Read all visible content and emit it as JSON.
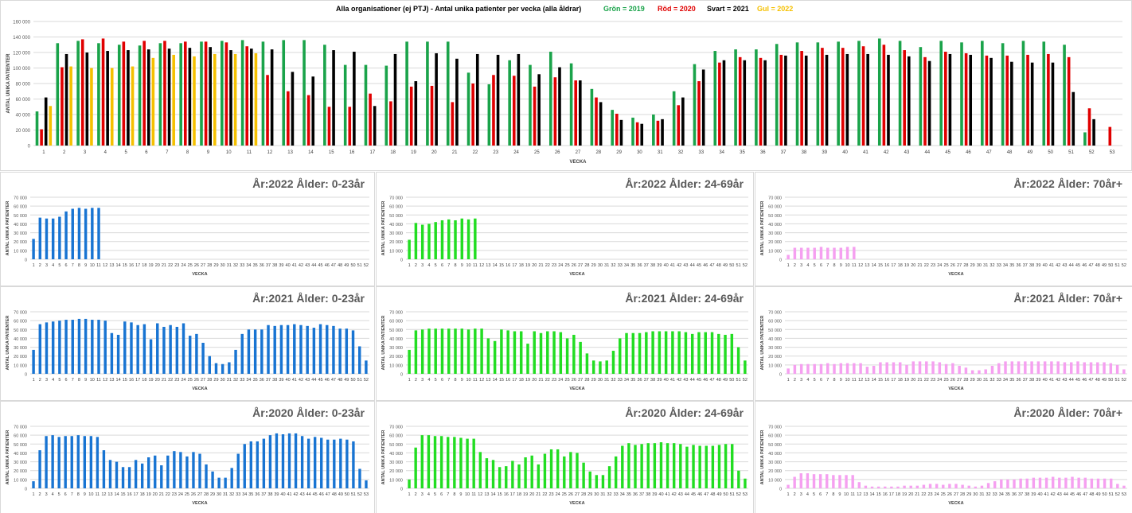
{
  "chart_data": [
    {
      "type": "bar",
      "title_parts": [
        {
          "text": "Alla organisationer (ej PTJ)   -   Antal unika patienter per vecka (alla åldrar)",
          "color": "#000000"
        },
        {
          "text": "Grön = 2019",
          "color": "#1aa34a"
        },
        {
          "text": "Röd = 2020",
          "color": "#e00000"
        },
        {
          "text": "Svart = 2021",
          "color": "#000000"
        },
        {
          "text": "Gul = 2022",
          "color": "#f5c000"
        }
      ],
      "xlabel": "VECKA",
      "ylabel": "ANTAL UNIKA PATIENTER",
      "ylim": [
        0,
        160000
      ],
      "ytick_step": 20000,
      "categories": [
        "1",
        "2",
        "3",
        "4",
        "5",
        "6",
        "7",
        "8",
        "9",
        "10",
        "11",
        "12",
        "13",
        "14",
        "15",
        "16",
        "17",
        "18",
        "19",
        "20",
        "21",
        "22",
        "23",
        "24",
        "25",
        "26",
        "27",
        "28",
        "29",
        "30",
        "31",
        "32",
        "33",
        "34",
        "35",
        "36",
        "37",
        "38",
        "39",
        "40",
        "41",
        "42",
        "43",
        "44",
        "45",
        "46",
        "47",
        "48",
        "49",
        "50",
        "51",
        "52",
        "53"
      ],
      "grid": true,
      "series": [
        {
          "name": "Grön = 2019",
          "color": "#1aa34a",
          "values": [
            44000,
            132000,
            135000,
            132000,
            130000,
            129000,
            132000,
            132000,
            134000,
            135000,
            136000,
            134000,
            136000,
            136000,
            130000,
            104000,
            104000,
            103000,
            134000,
            134000,
            134000,
            94000,
            79000,
            110000,
            104000,
            121000,
            106000,
            73000,
            46000,
            36000,
            40000,
            70000,
            105000,
            122000,
            124000,
            124000,
            131000,
            133000,
            133000,
            134000,
            135000,
            138000,
            135000,
            127000,
            135000,
            133000,
            135000,
            132000,
            135000,
            134000,
            130000,
            17000,
            null
          ]
        },
        {
          "name": "Röd = 2020",
          "color": "#e00000",
          "values": [
            21000,
            101000,
            137000,
            138000,
            134000,
            135000,
            135000,
            134000,
            134000,
            133000,
            128000,
            91000,
            70000,
            65000,
            50000,
            50000,
            67000,
            57000,
            76000,
            77000,
            56000,
            80000,
            91000,
            90000,
            76000,
            88000,
            84000,
            62000,
            41000,
            30000,
            32000,
            52000,
            83000,
            107000,
            114000,
            113000,
            117000,
            122000,
            126000,
            126000,
            128000,
            130000,
            123000,
            114000,
            121000,
            119000,
            116000,
            116000,
            117000,
            118000,
            114000,
            48000,
            24000
          ]
        },
        {
          "name": "Svart = 2021",
          "color": "#000000",
          "values": [
            62000,
            118000,
            120000,
            122000,
            123000,
            124000,
            125000,
            126000,
            127000,
            123000,
            125000,
            124000,
            95000,
            89000,
            123000,
            121000,
            51000,
            118000,
            83000,
            119000,
            112000,
            118000,
            117000,
            118000,
            92000,
            101000,
            84000,
            56000,
            33000,
            28000,
            34000,
            62000,
            98000,
            110000,
            110000,
            110000,
            116000,
            116000,
            117000,
            118000,
            118000,
            117000,
            115000,
            109000,
            118000,
            117000,
            113000,
            108000,
            107000,
            107000,
            69000,
            34000,
            null
          ]
        },
        {
          "name": "Gul = 2022",
          "color": "#f5c000",
          "values": [
            51000,
            102000,
            100000,
            100000,
            102000,
            113000,
            117000,
            115000,
            118000,
            118000,
            119000,
            null,
            null,
            null,
            null,
            null,
            null,
            null,
            null,
            null,
            null,
            null,
            null,
            null,
            null,
            null,
            null,
            null,
            null,
            null,
            null,
            null,
            null,
            null,
            null,
            null,
            null,
            null,
            null,
            null,
            null,
            null,
            null,
            null,
            null,
            null,
            null,
            null,
            null,
            null,
            null,
            null,
            null
          ]
        }
      ]
    },
    {
      "type": "bar",
      "title": "År:2022   Ålder: 0-23år",
      "xlabel": "VECKA",
      "ylabel": "ANTAL UNIKA PATIENTER",
      "ylim": [
        0,
        70000
      ],
      "ytick_step": 10000,
      "x_count": 52,
      "color": "#1874d2",
      "values": [
        23000,
        47000,
        46000,
        46000,
        48000,
        54000,
        57000,
        58000,
        57000,
        58000,
        58000
      ]
    },
    {
      "type": "bar",
      "title": "År:2022   Ålder: 24-69år",
      "xlabel": "VECKA",
      "ylabel": "ANTAL UNIKA PATIENTER",
      "ylim": [
        0,
        70000
      ],
      "ytick_step": 10000,
      "x_count": 52,
      "color": "#22dd22",
      "values": [
        22000,
        41000,
        39000,
        40000,
        42000,
        44000,
        45000,
        44000,
        46000,
        45000,
        46000
      ]
    },
    {
      "type": "bar",
      "title": "År:2022   Ålder: 70år+",
      "xlabel": "VECKA",
      "ylabel": "ANTAL UNIKA PATIENTER",
      "ylim": [
        0,
        70000
      ],
      "ytick_step": 10000,
      "x_count": 52,
      "color": "#f5a0f0",
      "values": [
        5000,
        13000,
        13000,
        13000,
        13000,
        14000,
        13000,
        13000,
        13000,
        14000,
        14000
      ]
    },
    {
      "type": "bar",
      "title": "År:2021   Ålder: 0-23år",
      "xlabel": "VECKA",
      "ylabel": "ANTAL UNIKA PATIENTER",
      "ylim": [
        0,
        70000
      ],
      "ytick_step": 10000,
      "x_count": 52,
      "color": "#1874d2",
      "values": [
        27000,
        56000,
        58000,
        59000,
        60000,
        61000,
        61000,
        62000,
        62000,
        61000,
        61000,
        60000,
        46000,
        44000,
        59000,
        58000,
        55000,
        56000,
        39000,
        57000,
        53000,
        55000,
        53000,
        57000,
        43000,
        45000,
        35000,
        20000,
        12000,
        11000,
        13000,
        27000,
        45000,
        50000,
        50000,
        50000,
        55000,
        54000,
        55000,
        55000,
        56000,
        55000,
        54000,
        52000,
        56000,
        55000,
        54000,
        51000,
        51000,
        49000,
        31000,
        15000
      ]
    },
    {
      "type": "bar",
      "title": "År:2021   Ålder: 24-69år",
      "xlabel": "VECKA",
      "ylabel": "ANTAL UNIKA PATIENTER",
      "ylim": [
        0,
        70000
      ],
      "ytick_step": 10000,
      "x_count": 52,
      "color": "#22dd22",
      "values": [
        27000,
        49000,
        50000,
        51000,
        51000,
        51000,
        51000,
        51000,
        51000,
        50000,
        51000,
        51000,
        40000,
        37000,
        50000,
        49000,
        48000,
        48000,
        34000,
        48000,
        46000,
        48000,
        48000,
        47000,
        40000,
        44000,
        36000,
        23000,
        15000,
        14000,
        15000,
        26000,
        40000,
        46000,
        46000,
        46000,
        47000,
        48000,
        48000,
        48000,
        48000,
        48000,
        47000,
        45000,
        47000,
        47000,
        47000,
        45000,
        44000,
        45000,
        30000,
        15000
      ]
    },
    {
      "type": "bar",
      "title": "År:2021   Ålder: 70år+",
      "xlabel": "VECKA",
      "ylabel": "ANTAL UNIKA PATIENTER",
      "ylim": [
        0,
        70000
      ],
      "ytick_step": 10000,
      "x_count": 52,
      "color": "#f5a0f0",
      "values": [
        6000,
        10000,
        11000,
        11000,
        11000,
        11000,
        12000,
        11000,
        12000,
        12000,
        12000,
        12000,
        8000,
        9000,
        13000,
        13000,
        13000,
        13000,
        10000,
        14000,
        14000,
        14000,
        14000,
        13000,
        11000,
        12000,
        9000,
        7000,
        4000,
        4000,
        5000,
        9000,
        12000,
        14000,
        14000,
        14000,
        14000,
        14000,
        14000,
        14000,
        14000,
        14000,
        13000,
        13000,
        14000,
        13000,
        13000,
        13000,
        13000,
        12000,
        10000,
        5000
      ]
    },
    {
      "type": "bar",
      "title": "År:2020   Ålder: 0-23år",
      "xlabel": "VECKA",
      "ylabel": "ANTAL UNIKA PATIENTER",
      "ylim": [
        0,
        70000
      ],
      "ytick_step": 10000,
      "x_count": 53,
      "color": "#1874d2",
      "values": [
        8000,
        43000,
        59000,
        60000,
        58000,
        59000,
        59000,
        60000,
        59000,
        59000,
        58000,
        43000,
        32000,
        30000,
        24000,
        24000,
        32000,
        28000,
        35000,
        37000,
        26000,
        37000,
        42000,
        41000,
        36000,
        41000,
        39000,
        27000,
        19000,
        12000,
        12000,
        23000,
        39000,
        50000,
        53000,
        53000,
        56000,
        60000,
        62000,
        61000,
        62000,
        62000,
        59000,
        56000,
        58000,
        57000,
        55000,
        55000,
        56000,
        55000,
        53000,
        22000,
        9000
      ]
    },
    {
      "type": "bar",
      "title": "År:2020   Ålder: 24-69år",
      "xlabel": "VECKA",
      "ylabel": "ANTAL UNIKA PATIENTER",
      "ylim": [
        0,
        70000
      ],
      "ytick_step": 10000,
      "x_count": 53,
      "color": "#22dd22",
      "values": [
        10000,
        46000,
        60000,
        60000,
        59000,
        59000,
        58000,
        58000,
        57000,
        56000,
        56000,
        41000,
        34000,
        32000,
        24000,
        25000,
        31000,
        27000,
        35000,
        37000,
        27000,
        39000,
        44000,
        44000,
        36000,
        41000,
        40000,
        29000,
        19000,
        15000,
        15000,
        25000,
        36000,
        48000,
        51000,
        49000,
        50000,
        51000,
        51000,
        52000,
        51000,
        51000,
        50000,
        47000,
        49000,
        48000,
        48000,
        48000,
        49000,
        50000,
        50000,
        20000,
        11000
      ]
    },
    {
      "type": "bar",
      "title": "År:2020   Ålder: 70år+",
      "xlabel": "VECKA",
      "ylabel": "ANTAL UNIKA PATIENTER",
      "ylim": [
        0,
        70000
      ],
      "ytick_step": 10000,
      "x_count": 53,
      "color": "#f5a0f0",
      "values": [
        4000,
        13000,
        17000,
        17000,
        16000,
        16000,
        16000,
        15000,
        15000,
        15000,
        15000,
        7000,
        3000,
        2000,
        2000,
        2000,
        2000,
        2000,
        3000,
        3000,
        3000,
        4000,
        5000,
        5000,
        4000,
        5000,
        5000,
        4000,
        3000,
        2000,
        3000,
        6000,
        8000,
        10000,
        10000,
        10000,
        11000,
        11000,
        12000,
        12000,
        12000,
        13000,
        12000,
        12000,
        13000,
        12000,
        12000,
        11000,
        11000,
        11000,
        11000,
        5000,
        3000
      ]
    }
  ]
}
